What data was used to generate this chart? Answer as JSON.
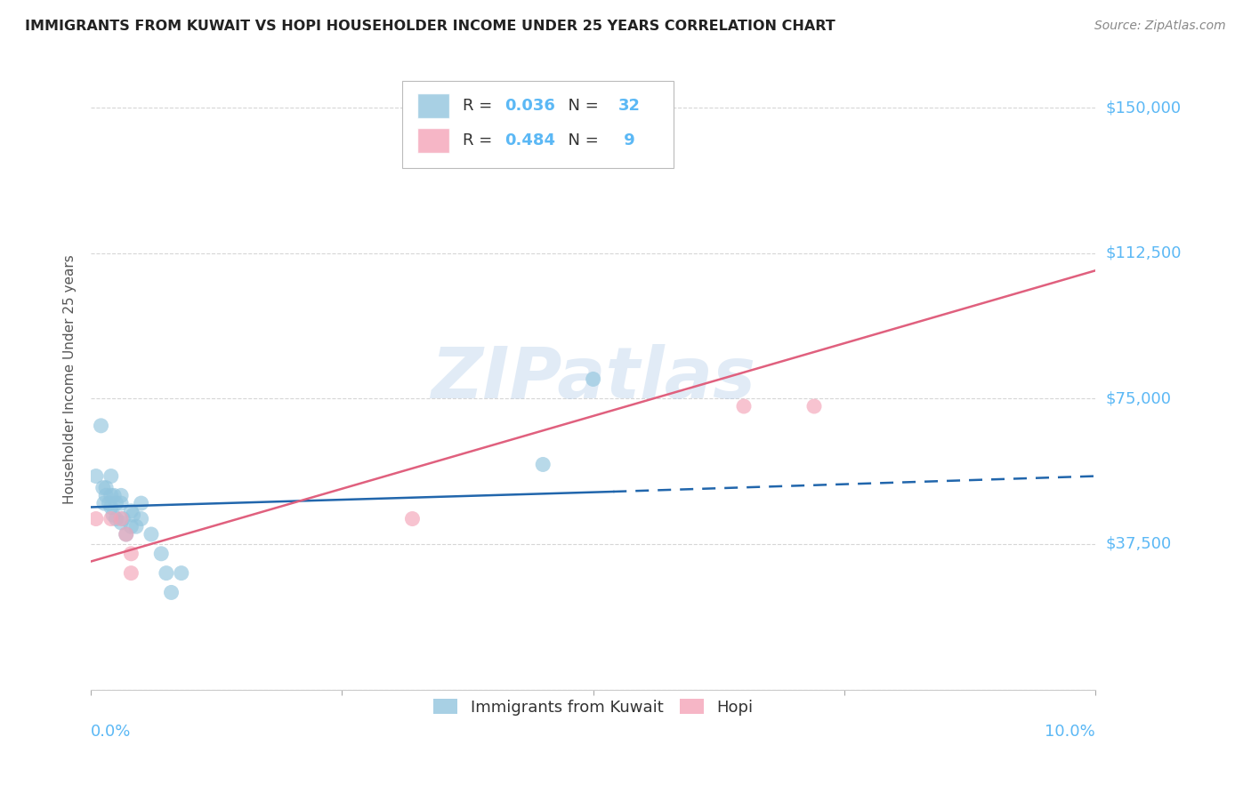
{
  "title": "IMMIGRANTS FROM KUWAIT VS HOPI HOUSEHOLDER INCOME UNDER 25 YEARS CORRELATION CHART",
  "source": "Source: ZipAtlas.com",
  "ylabel": "Householder Income Under 25 years",
  "y_ticks": [
    0,
    37500,
    75000,
    112500,
    150000
  ],
  "y_tick_labels": [
    "",
    "$37,500",
    "$75,000",
    "$112,500",
    "$150,000"
  ],
  "xlim": [
    0.0,
    0.1
  ],
  "ylim": [
    15000,
    160000
  ],
  "blue_color": "#92c5de",
  "pink_color": "#f4a4b8",
  "trendline_blue": "#2166ac",
  "trendline_pink": "#e0607e",
  "legend_R_blue": "0.036",
  "legend_N_blue": "32",
  "legend_R_pink": "0.484",
  "legend_N_pink": " 9",
  "watermark": "ZIPatlas",
  "blue_points_x": [
    0.0005,
    0.001,
    0.0012,
    0.0013,
    0.0015,
    0.0015,
    0.0018,
    0.002,
    0.002,
    0.002,
    0.0022,
    0.0023,
    0.0025,
    0.0025,
    0.003,
    0.003,
    0.003,
    0.0032,
    0.0035,
    0.004,
    0.004,
    0.0042,
    0.0045,
    0.005,
    0.005,
    0.006,
    0.007,
    0.0075,
    0.008,
    0.009,
    0.045,
    0.05
  ],
  "blue_points_y": [
    55000,
    68000,
    52000,
    48000,
    52000,
    50000,
    48000,
    55000,
    50000,
    47000,
    45000,
    50000,
    48000,
    44000,
    50000,
    48000,
    43000,
    44000,
    40000,
    46000,
    42000,
    45000,
    42000,
    48000,
    44000,
    40000,
    35000,
    30000,
    25000,
    30000,
    58000,
    80000
  ],
  "pink_points_x": [
    0.0005,
    0.002,
    0.003,
    0.0035,
    0.004,
    0.004,
    0.032,
    0.065,
    0.072
  ],
  "pink_points_y": [
    44000,
    44000,
    44000,
    40000,
    35000,
    30000,
    44000,
    73000,
    73000
  ],
  "blue_trend_x0": 0.0,
  "blue_trend_x1": 0.052,
  "blue_trend_y0": 47000,
  "blue_trend_y1": 51000,
  "blue_trend_dash_x0": 0.052,
  "blue_trend_dash_x1": 0.1,
  "blue_trend_dash_y0": 51000,
  "blue_trend_dash_y1": 55000,
  "pink_trend_x0": 0.0,
  "pink_trend_x1": 0.1,
  "pink_trend_y0": 33000,
  "pink_trend_y1": 108000
}
